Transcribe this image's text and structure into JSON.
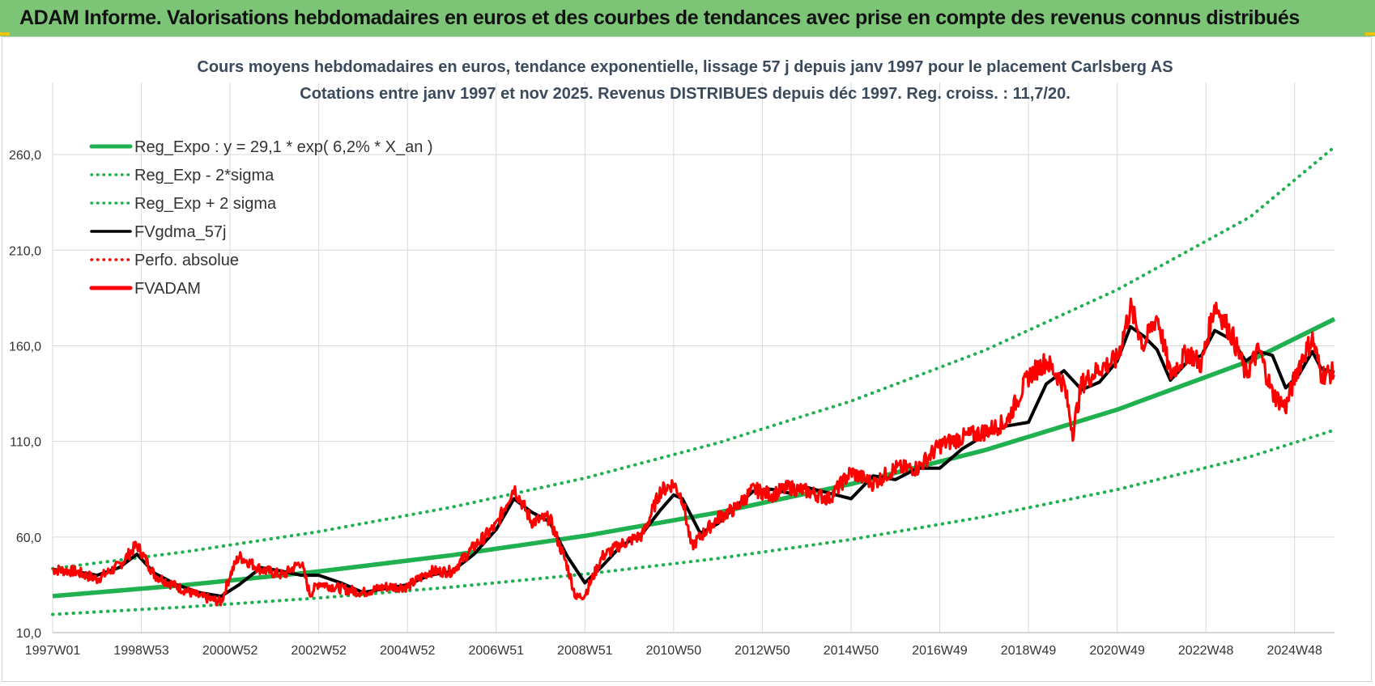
{
  "header": {
    "banner_title": "ADAM Informe. Valorisations hebdomadaires en euros et des courbes de tendances avec prise en compte des revenus connus distribués"
  },
  "colors": {
    "banner_bg": "#7cc576",
    "green": "#1fb14f",
    "red": "#ff0000",
    "black": "#000000"
  },
  "chart_data": {
    "type": "line",
    "title": "Cours moyens hebdomadaires en euros, tendance exponentielle, lissage 57 j depuis janv 1997 pour le placement Carlsberg AS",
    "subtitle": "Cotations entre janv 1997 et nov 2025. Revenus DISTRIBUES depuis déc 1997. Reg. croiss. : 11,7/20.",
    "xlabel": "",
    "ylabel": "",
    "ylim": [
      10,
      285
    ],
    "xlim": [
      1997.0,
      2025.9
    ],
    "y_ticks": [
      "10,0",
      "60,0",
      "110,0",
      "160,0",
      "210,0",
      "260,0"
    ],
    "y_tick_values": [
      10,
      60,
      110,
      160,
      210,
      260
    ],
    "x_ticks": [
      "1997W01",
      "1998W53",
      "2000W52",
      "2002W52",
      "2004W52",
      "2006W51",
      "2008W51",
      "2010W50",
      "2012W50",
      "2014W50",
      "2016W49",
      "2018W49",
      "2020W49",
      "2022W48",
      "2024W48"
    ],
    "x_tick_values": [
      1997.0,
      1999.0,
      2001.0,
      2003.0,
      2005.0,
      2007.0,
      2009.0,
      2011.0,
      2013.0,
      2015.0,
      2017.0,
      2019.0,
      2021.0,
      2023.0,
      2025.0
    ],
    "legend": {
      "position": "top-left",
      "entries": [
        {
          "label": "Reg_Expo : y = 29,1 * exp( 6,2% *  X_an )",
          "color": "#1fb14f",
          "style": "solid-thick"
        },
        {
          "label": "Reg_Exp - 2*sigma",
          "color": "#1fb14f",
          "style": "dotted"
        },
        {
          "label": "Reg_Exp + 2 sigma",
          "color": "#1fb14f",
          "style": "dotted"
        },
        {
          "label": "FVgdma_57j",
          "color": "#000000",
          "style": "solid"
        },
        {
          "label": "Perfo. absolue",
          "color": "#ff0000",
          "style": "dotted"
        },
        {
          "label": "FVADAM",
          "color": "#ff0000",
          "style": "solid-thick"
        }
      ]
    },
    "series": [
      {
        "name": "Reg_Expo",
        "x": [
          1997.0,
          2000.0,
          2003.0,
          2006.0,
          2009.0,
          2012.0,
          2015.0,
          2018.0,
          2021.0,
          2024.0,
          2025.9
        ],
        "values": [
          29.1,
          34.9,
          42.0,
          50.5,
          60.6,
          72.8,
          87.7,
          105.3,
          126.6,
          152.2,
          174.0
        ]
      },
      {
        "name": "Reg_Exp - 2*sigma",
        "x": [
          1997.0,
          2000.0,
          2003.0,
          2006.0,
          2009.0,
          2012.0,
          2015.0,
          2018.0,
          2021.0,
          2024.0,
          2025.9
        ],
        "values": [
          19.5,
          23.4,
          28.1,
          33.8,
          40.6,
          48.8,
          58.7,
          70.6,
          84.8,
          102.0,
          116.0
        ]
      },
      {
        "name": "Reg_Exp + 2 sigma",
        "x": [
          1997.0,
          2000.0,
          2003.0,
          2006.0,
          2009.0,
          2012.0,
          2015.0,
          2018.0,
          2021.0,
          2024.0,
          2025.9
        ],
        "values": [
          43.5,
          52.3,
          62.8,
          75.6,
          90.8,
          109.2,
          131.1,
          157.5,
          189.3,
          227.4,
          264.0
        ]
      },
      {
        "name": "FVgdma_57j",
        "x": [
          1997.0,
          1997.5,
          1998.0,
          1998.5,
          1998.9,
          1999.3,
          1999.8,
          2000.3,
          2000.8,
          2001.2,
          2001.7,
          2002.2,
          2002.6,
          2003.0,
          2003.5,
          2004.0,
          2004.5,
          2005.0,
          2005.5,
          2006.0,
          2006.5,
          2007.0,
          2007.4,
          2007.8,
          2008.2,
          2008.6,
          2009.0,
          2009.4,
          2009.8,
          2010.3,
          2010.7,
          2011.0,
          2011.2,
          2011.6,
          2012.0,
          2012.4,
          2012.8,
          2013.2,
          2013.6,
          2014.0,
          2014.5,
          2015.0,
          2015.5,
          2016.0,
          2016.5,
          2017.0,
          2017.5,
          2018.0,
          2018.5,
          2019.0,
          2019.4,
          2019.8,
          2020.2,
          2020.6,
          2021.0,
          2021.3,
          2021.6,
          2021.9,
          2022.2,
          2022.6,
          2022.9,
          2023.2,
          2023.6,
          2023.9,
          2024.2,
          2024.5,
          2024.8,
          2025.1,
          2025.4,
          2025.6,
          2025.9
        ],
        "values": [
          43,
          42,
          40,
          44,
          51,
          41,
          35,
          31,
          29,
          35,
          44,
          42,
          40,
          40,
          36,
          31,
          33,
          35,
          40,
          42,
          51,
          64,
          80,
          73,
          68,
          50,
          36,
          45,
          55,
          62,
          74,
          82,
          80,
          62,
          67,
          76,
          84,
          85,
          83,
          86,
          83,
          80,
          92,
          90,
          96,
          96,
          106,
          113,
          118,
          120,
          140,
          147,
          137,
          141,
          152,
          170,
          165,
          158,
          142,
          152,
          155,
          168,
          163,
          152,
          157,
          155,
          138,
          145,
          157,
          148,
          146
        ]
      },
      {
        "name": "FVADAM",
        "x": [
          1997.0,
          1997.5,
          1998.0,
          1998.5,
          1998.9,
          1999.3,
          1999.8,
          2000.3,
          2000.8,
          2001.0,
          2001.2,
          2001.7,
          2002.2,
          2002.6,
          2002.8,
          2003.0,
          2003.5,
          2004.0,
          2004.5,
          2005.0,
          2005.5,
          2006.0,
          2006.5,
          2007.0,
          2007.4,
          2007.8,
          2008.2,
          2008.6,
          2008.8,
          2009.0,
          2009.4,
          2009.8,
          2010.3,
          2010.7,
          2011.0,
          2011.2,
          2011.4,
          2011.6,
          2012.0,
          2012.4,
          2012.8,
          2013.2,
          2013.6,
          2014.0,
          2014.5,
          2015.0,
          2015.5,
          2016.0,
          2016.5,
          2017.0,
          2017.5,
          2018.0,
          2018.5,
          2019.0,
          2019.4,
          2019.8,
          2020.0,
          2020.2,
          2020.6,
          2021.0,
          2021.3,
          2021.6,
          2021.9,
          2022.2,
          2022.6,
          2022.9,
          2023.2,
          2023.6,
          2023.9,
          2024.2,
          2024.5,
          2024.8,
          2025.1,
          2025.4,
          2025.6,
          2025.9
        ],
        "values": [
          43,
          42,
          38,
          45,
          56,
          40,
          34,
          29,
          26,
          40,
          50,
          43,
          40,
          47,
          30,
          36,
          33,
          31,
          34,
          34,
          42,
          42,
          55,
          66,
          86,
          68,
          70,
          45,
          28,
          30,
          50,
          56,
          61,
          84,
          88,
          80,
          55,
          60,
          70,
          75,
          85,
          82,
          86,
          84,
          80,
          94,
          88,
          96,
          96,
          108,
          112,
          115,
          120,
          144,
          152,
          140,
          115,
          140,
          148,
          153,
          180,
          160,
          176,
          145,
          157,
          150,
          182,
          165,
          145,
          158,
          135,
          128,
          150,
          164,
          145,
          146
        ]
      }
    ]
  }
}
